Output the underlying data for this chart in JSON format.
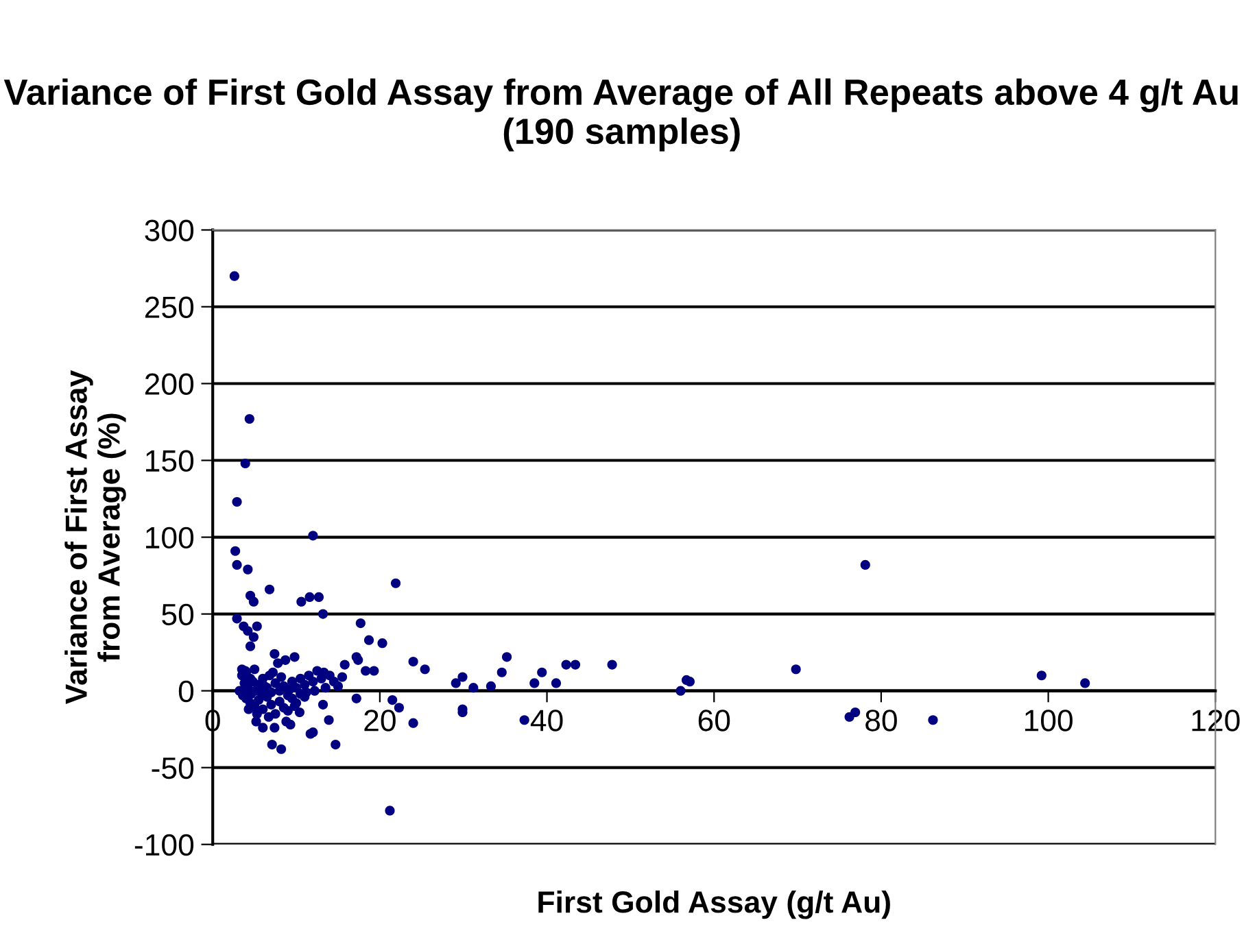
{
  "chart_data": {
    "type": "scatter",
    "title": "Variance of First Gold Assay from Average of All Repeats above 4 g/t Au (190 samples)",
    "xlabel": "First Gold Assay (g/t Au)",
    "ylabel": "Variance of First Assay\nfrom Average (%)",
    "xlim": [
      0,
      120
    ],
    "xticks": [
      0,
      20,
      40,
      60,
      80,
      100,
      120
    ],
    "ylim": [
      -100,
      300
    ],
    "yticks": [
      -100,
      -50,
      0,
      50,
      100,
      150,
      200,
      250,
      300
    ],
    "grid": "y",
    "marker": "circle",
    "legend": false,
    "series": [
      {
        "color": "#000080",
        "x": [
          2.6,
          4.4,
          3.9,
          2.9,
          2.7,
          2.9,
          12.0,
          4.2,
          6.8,
          4.5,
          4.9,
          10.6,
          11.6,
          12.7,
          13.2,
          21.9,
          2.9,
          3.7,
          5.3,
          4.2,
          4.9,
          4.5,
          17.7,
          18.7,
          20.3,
          24.0,
          7.4,
          8.7,
          9.8,
          3.5,
          17.2,
          17.4,
          15.8,
          18.3,
          19.3,
          13.3,
          15.5,
          15.0,
          17.2,
          21.5,
          22.3,
          24.0,
          13.2,
          13.9,
          14.7,
          11.7,
          12.0,
          7.1,
          8.2,
          6.0,
          5.2,
          7.4,
          9.3,
          10.4,
          21.2,
          25.4,
          29.1,
          29.9,
          29.9,
          29.9,
          31.2,
          33.3,
          34.6,
          35.2,
          37.3,
          38.5,
          39.4,
          41.1,
          42.3,
          43.4,
          47.8,
          56.0,
          56.7,
          57.1,
          69.8,
          78.1,
          76.2,
          76.9,
          86.2,
          99.2,
          104.4,
          3.5,
          4.0,
          4.5,
          5.0,
          3.8,
          4.2,
          4.6,
          5.1,
          5.5,
          6.0,
          6.5,
          7.0,
          7.5,
          8.0,
          8.5,
          9.0,
          9.5,
          10.0,
          10.5,
          11.0,
          11.5,
          12.0,
          12.5,
          13.0,
          14.0,
          14.5,
          4.0,
          4.5,
          5.0,
          5.5,
          6.0,
          6.5,
          7.0,
          7.5,
          8.0,
          8.5,
          9.0,
          9.5,
          10.0,
          10.5,
          11.0,
          3.2,
          3.6,
          4.8,
          5.8,
          6.2,
          6.8,
          7.2,
          8.2,
          8.8,
          9.2,
          9.8,
          11.2,
          12.2,
          13.5,
          5.3,
          6.7,
          4.3,
          3.9,
          7.8
        ],
        "values": [
          270,
          177,
          148,
          123,
          91,
          82,
          101,
          79,
          66,
          62,
          58,
          58,
          61,
          61,
          50,
          70,
          47,
          42,
          42,
          39,
          35,
          29,
          44,
          33,
          31,
          19,
          24,
          20,
          22,
          14,
          22,
          20,
          17,
          13,
          13,
          12,
          9,
          3,
          -5,
          -6,
          -11,
          -21,
          -9,
          -19,
          -35,
          -28,
          -27,
          -35,
          -38,
          -24,
          -20,
          -24,
          -22,
          -14,
          -78,
          14,
          5,
          9,
          -12,
          -14,
          2,
          3,
          12,
          22,
          -19,
          5,
          12,
          5,
          17,
          17,
          17,
          0,
          7,
          6,
          14,
          82,
          -17,
          -14,
          -19,
          10,
          5,
          10,
          12,
          8,
          14,
          5,
          2,
          -2,
          0,
          4,
          8,
          2,
          -1,
          5,
          0,
          3,
          -3,
          6,
          2,
          8,
          4,
          10,
          6,
          13,
          8,
          10,
          6,
          -5,
          -8,
          -10,
          -6,
          -12,
          -4,
          -9,
          -15,
          -7,
          -11,
          -13,
          -5,
          -8,
          -2,
          -4,
          0,
          -3,
          6,
          -1,
          3,
          10,
          12,
          9,
          -20,
          1,
          -10,
          -1,
          0,
          2,
          -15,
          -17,
          -12,
          13,
          18
        ]
      }
    ]
  }
}
